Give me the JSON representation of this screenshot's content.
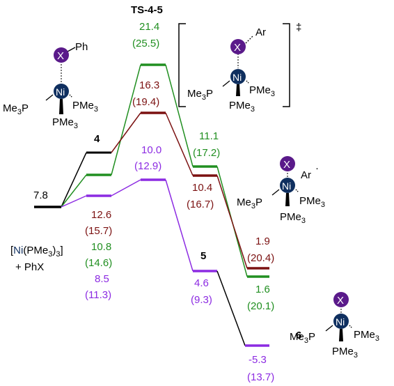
{
  "colors": {
    "black": "#000000",
    "green": "#218f21",
    "red": "#7b1111",
    "purple": "#8c2be2",
    "nickel": "#0f2f5f",
    "x_atom": "#5a1a8a"
  },
  "structure_labels": {
    "ts_name": "TS-4-5",
    "dagger": "‡",
    "int4": "4",
    "int5": "5",
    "int6": "6",
    "reactant_line1": "[Ni(PMe3)3]",
    "reactant_line2": "+ PhX"
  },
  "molecule_text": {
    "ni": "Ni",
    "x": "X",
    "ph": "Ph",
    "ar": "Ar",
    "me3p": "Me3P",
    "pme3": "PMe3"
  },
  "energy_values": {
    "start": "7.8",
    "i4_red": "12.6",
    "i4_red_p": "(15.7)",
    "i4_green": "10.8",
    "i4_green_p": "(14.6)",
    "i4_purple": "8.5",
    "i4_purple_p": "(11.3)",
    "ts_green": "21.4",
    "ts_green_p": "(25.5)",
    "ts_red": "16.3",
    "ts_red_p": "(19.4)",
    "ts_purple": "10.0",
    "ts_purple_p": "(12.9)",
    "i5_green": "11.1",
    "i5_green_p": "(17.2)",
    "i5_red": "10.4",
    "i5_red_p": "(16.7)",
    "i5_purple": "4.6",
    "i5_purple_p": "(9.3)",
    "i6_red": "1.9",
    "i6_red_p": "(20.4)",
    "i6_green": "1.6",
    "i6_green_p": "(20.1)",
    "i6_purple": "-5.3",
    "i6_purple_p": "(13.7)"
  }
}
